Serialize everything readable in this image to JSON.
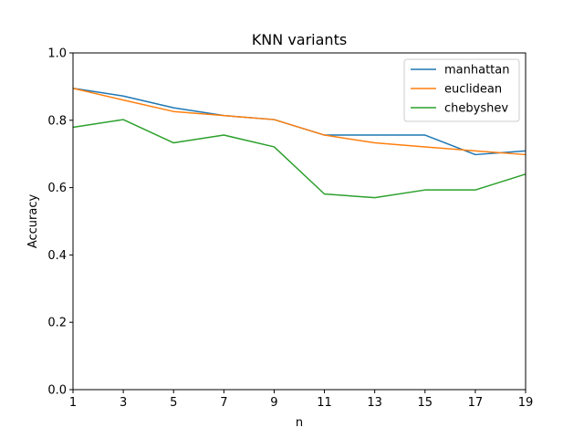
{
  "chart_data": {
    "type": "line",
    "title": "KNN variants",
    "xlabel": "n",
    "ylabel": "Accuracy",
    "x": [
      1,
      3,
      5,
      7,
      9,
      11,
      13,
      15,
      17,
      19
    ],
    "xlim": [
      1,
      19
    ],
    "ylim": [
      0.0,
      1.0
    ],
    "x_ticks": [
      "1",
      "3",
      "5",
      "7",
      "9",
      "11",
      "13",
      "15",
      "17",
      "19"
    ],
    "y_ticks": [
      "0.0",
      "0.2",
      "0.4",
      "0.6",
      "0.8",
      "1.0"
    ],
    "grid": false,
    "legend_position": "top-right",
    "series": [
      {
        "name": "manhattan",
        "color": "#1f77b4",
        "values": [
          0.895,
          0.872,
          0.837,
          0.814,
          0.802,
          0.756,
          0.756,
          0.756,
          0.698,
          0.709
        ]
      },
      {
        "name": "euclidean",
        "color": "#ff7f0e",
        "values": [
          0.895,
          0.86,
          0.826,
          0.814,
          0.802,
          0.756,
          0.733,
          0.721,
          0.709,
          0.698
        ]
      },
      {
        "name": "chebyshev",
        "color": "#2ca02c",
        "values": [
          0.779,
          0.802,
          0.733,
          0.756,
          0.721,
          0.581,
          0.57,
          0.593,
          0.593,
          0.64
        ]
      }
    ]
  }
}
